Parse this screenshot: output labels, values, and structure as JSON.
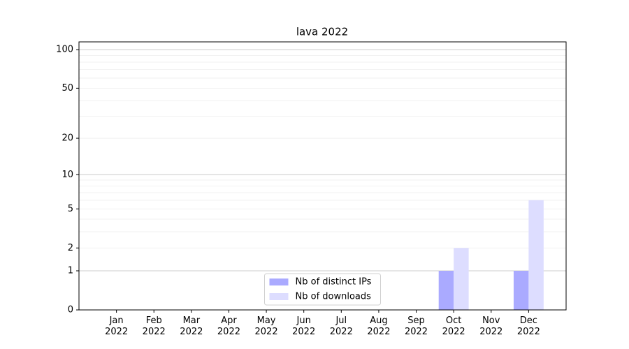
{
  "chart_data": {
    "type": "bar",
    "title": "lava 2022",
    "categories": [
      "Jan\n2022",
      "Feb\n2022",
      "Mar\n2022",
      "Apr\n2022",
      "May\n2022",
      "Jun\n2022",
      "Jul\n2022",
      "Aug\n2022",
      "Sep\n2022",
      "Oct\n2022",
      "Nov\n2022",
      "Dec\n2022"
    ],
    "series": [
      {
        "name": "Nb of distinct IPs",
        "color": "#aaaaff",
        "values": [
          0,
          0,
          0,
          0,
          0,
          0,
          0,
          0,
          0,
          1,
          0,
          1
        ]
      },
      {
        "name": "Nb of downloads",
        "color": "#ddddff",
        "values": [
          0,
          0,
          0,
          0,
          0,
          0,
          0,
          0,
          0,
          2,
          0,
          6
        ]
      }
    ],
    "yscale": "log1p",
    "ylim": [
      0,
      115
    ],
    "yticks": [
      0,
      1,
      2,
      5,
      10,
      20,
      50,
      100
    ],
    "grid_major": [
      1,
      10,
      100
    ],
    "grid_minor": [
      2,
      3,
      4,
      5,
      6,
      7,
      8,
      9,
      20,
      30,
      40,
      50,
      60,
      70,
      80,
      90
    ],
    "legend": "lower center"
  }
}
